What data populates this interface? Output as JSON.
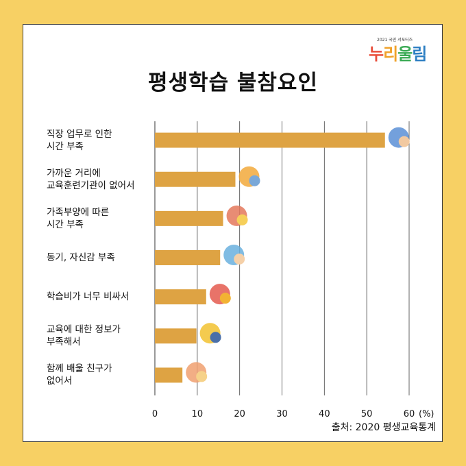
{
  "page": {
    "title": "평생학습 불참요인",
    "source": "출처: 2020 평생교육통계",
    "logo": {
      "small_text": "2021 국민 서포터즈",
      "main_text": [
        "누",
        "리",
        "울",
        "림"
      ]
    }
  },
  "chart_data": {
    "type": "bar",
    "orientation": "horizontal",
    "title": "평생학습 불참요인",
    "categories": [
      "직장 업무로 인한\n시간 부족",
      "가까운 거리에\n교육훈련기관이 없어서",
      "가족부양에 따른\n시간 부족",
      "동기, 자신감 부족",
      "학습비가 너무 비싸서",
      "교육에 대한 정보가\n부족해서",
      "함께 배울 친구가\n없어서"
    ],
    "values": [
      54.3,
      19.0,
      16.1,
      15.4,
      12.1,
      9.8,
      6.5
    ],
    "xlim": [
      0,
      60
    ],
    "x_ticks": [
      0,
      10,
      20,
      30,
      40,
      50,
      60
    ],
    "x_unit": "(%)",
    "grid": "vertical",
    "bar_color": "#dea343",
    "icons": [
      "handshake-briefcase-icon",
      "buildings-icon",
      "family-icon",
      "businessman-idea-icon",
      "money-bag-icon",
      "info-laptop-icon",
      "friends-icon"
    ]
  }
}
